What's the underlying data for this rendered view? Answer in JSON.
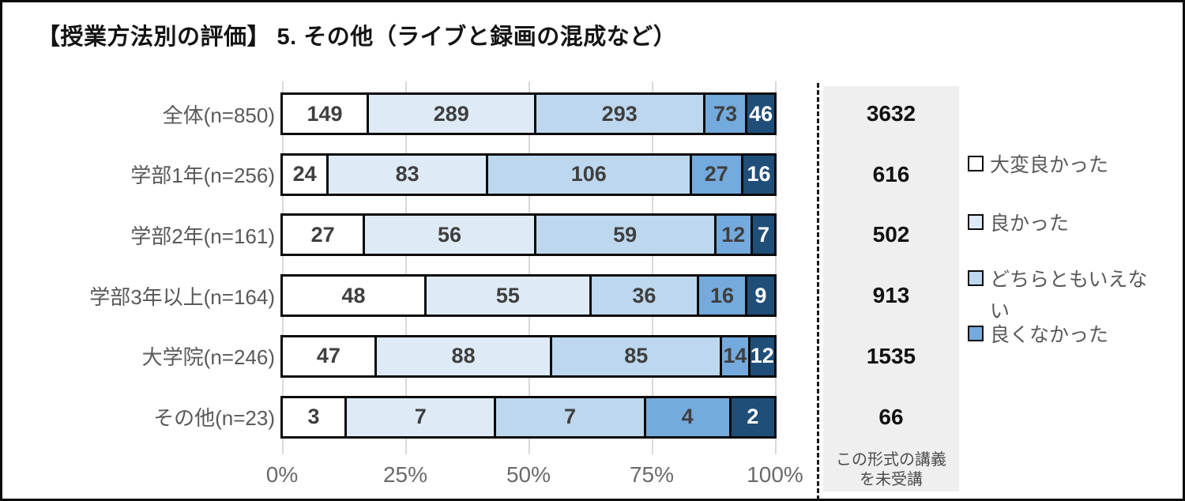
{
  "title": "【授業方法別の評価】 5. その他（ライブと録画の混成など）",
  "chart_data": {
    "type": "bar",
    "variant": "stacked-100-percent",
    "orientation": "horizontal",
    "title": "【授業方法別の評価】 5. その他（ライブと録画の混成など）",
    "categories": [
      "全体(n=850)",
      "学部1年(n=256)",
      "学部2年(n=161)",
      "学部3年以上(n=164)",
      "大学院(n=246)",
      "その他(n=23)"
    ],
    "category_totals": [
      850,
      256,
      161,
      164,
      246,
      23
    ],
    "series": [
      {
        "name": "大変良かった",
        "color": "#ffffff",
        "label_color": "#3f3f3f",
        "values": [
          149,
          24,
          27,
          48,
          47,
          3
        ]
      },
      {
        "name": "良かった",
        "color": "#deebf7",
        "label_color": "#3f3f3f",
        "values": [
          289,
          83,
          56,
          55,
          88,
          7
        ]
      },
      {
        "name": "どちらともいえない",
        "color": "#bdd7ee",
        "label_color": "#3f3f3f",
        "values": [
          293,
          106,
          59,
          36,
          85,
          7
        ]
      },
      {
        "name": "良くなかった",
        "color": "#74aadd",
        "label_color": "#3f3f3f",
        "values": [
          73,
          27,
          12,
          16,
          14,
          4
        ]
      },
      {
        "name": "",
        "color": "#1f4e79",
        "label_color": "#ffffff",
        "values": [
          46,
          16,
          7,
          9,
          12,
          2
        ]
      }
    ],
    "x_ticks": [
      "0%",
      "25%",
      "50%",
      "75%",
      "100%"
    ],
    "xlim": [
      0,
      100
    ],
    "grid": "vertical",
    "legend_position": "right"
  },
  "legend": {
    "items": [
      {
        "label": "大変良かった",
        "color": "#ffffff"
      },
      {
        "label": "良かった",
        "color": "#deebf7"
      },
      {
        "label": "どちらともいえない",
        "color": "#bdd7ee"
      },
      {
        "label": "良くなかった",
        "color": "#74aadd"
      }
    ]
  },
  "right_panel": {
    "values": [
      3632,
      616,
      502,
      913,
      1535,
      66
    ],
    "footer_lines": [
      "この形式の講義",
      "を未受講"
    ]
  },
  "colors": {
    "grid": "#d9d9d9",
    "bar_border": "#0a0a0a",
    "panel_background": "#efefef",
    "axis_text": "#6a6a6a",
    "category_text": "#595959"
  }
}
